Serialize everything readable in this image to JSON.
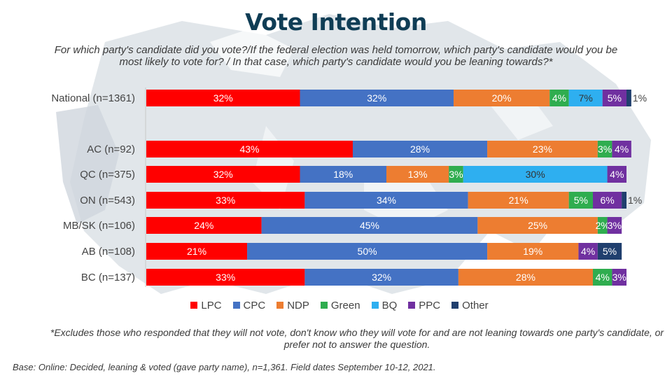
{
  "title": "Vote Intention",
  "subtitle": "For which party's candidate did you vote?/If the federal election was held tomorrow, which party's candidate would you be most likely to vote for? / In that case, which party's candidate would you be leaning towards?*",
  "footnote": "*Excludes those who responded that they will not vote, don't know who they will vote for and are not leaning towards one party's candidate, or prefer not to answer the question.",
  "base": "Base: Online: Decided, leaning & voted (gave party name), n=1,361. Field dates September 10-12, 2021.",
  "chart_data": {
    "type": "bar",
    "orientation": "horizontal",
    "stacked": true,
    "title": "Vote Intention",
    "xlabel": "",
    "ylabel": "",
    "xlim": [
      0,
      100
    ],
    "grid": false,
    "legend_position": "bottom",
    "categories": [
      "National (n=1361)",
      "AC (n=92)",
      "QC (n=375)",
      "ON (n=543)",
      "MB/SK (n=106)",
      "AB (n=108)",
      "BC (n=137)"
    ],
    "series": [
      {
        "name": "LPC",
        "color": "#ff0000",
        "label_color": "#ffffff",
        "values": [
          32,
          43,
          32,
          33,
          24,
          21,
          33
        ]
      },
      {
        "name": "CPC",
        "color": "#4472c4",
        "label_color": "#ffffff",
        "values": [
          32,
          28,
          18,
          34,
          45,
          50,
          32
        ]
      },
      {
        "name": "NDP",
        "color": "#ed7d31",
        "label_color": "#ffffff",
        "values": [
          20,
          23,
          13,
          21,
          25,
          19,
          28
        ]
      },
      {
        "name": "Green",
        "color": "#2fad4f",
        "label_color": "#ffffff",
        "values": [
          4,
          3,
          3,
          5,
          2,
          0,
          4
        ]
      },
      {
        "name": "BQ",
        "color": "#2eaff0",
        "label_color": "#333333",
        "values": [
          7,
          0,
          30,
          0,
          0,
          0,
          0
        ]
      },
      {
        "name": "PPC",
        "color": "#7030a0",
        "label_color": "#ffffff",
        "values": [
          5,
          4,
          4,
          6,
          3,
          4,
          3
        ]
      },
      {
        "name": "Other",
        "color": "#203f6e",
        "label_color": "#ffffff",
        "values": [
          1,
          0,
          0,
          1,
          0,
          5,
          0
        ]
      }
    ],
    "outside_labels": [
      {
        "category": "National (n=1361)",
        "series": "Other",
        "text": "1%"
      },
      {
        "category": "ON (n=543)",
        "series": "Other",
        "text": "1%"
      }
    ]
  }
}
